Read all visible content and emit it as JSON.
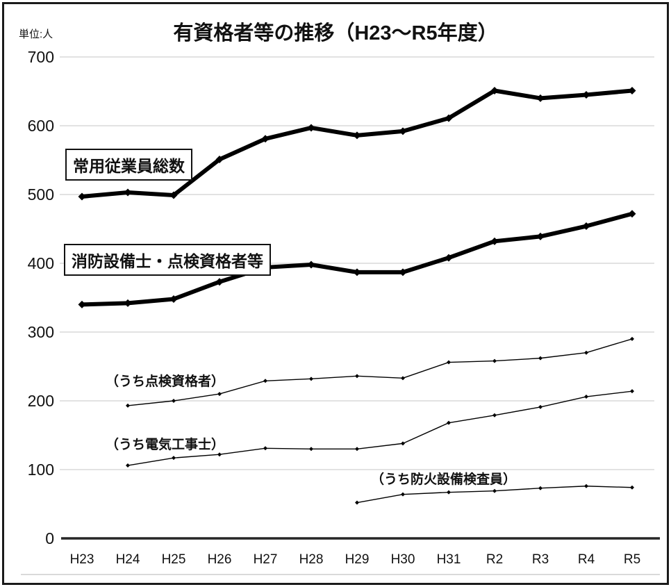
{
  "chart_data": {
    "type": "line",
    "title": "有資格者等の推移（H23～R5年度）",
    "unit_label": "単位:人",
    "categories": [
      "H23",
      "H24",
      "H25",
      "H26",
      "H27",
      "H28",
      "H29",
      "H30",
      "H31",
      "R2",
      "R3",
      "R4",
      "R5"
    ],
    "y_ticks": [
      0,
      100,
      200,
      300,
      400,
      500,
      600,
      700
    ],
    "ylim": [
      0,
      700
    ],
    "grid": "horizontal",
    "legend_position": "inline-labels",
    "colors": {
      "line": "#000000",
      "gridline": "#d9d9d9",
      "axis": "#262626",
      "background": "#ffffff",
      "border": "#1a1a1a"
    },
    "series": [
      {
        "name": "常用従業員総数",
        "style": "thick",
        "boxed_label": true,
        "values": [
          497,
          503,
          499,
          551,
          581,
          597,
          586,
          592,
          611,
          651,
          640,
          645,
          651
        ]
      },
      {
        "name": "消防設備士・点検資格者等",
        "style": "thick",
        "boxed_label": true,
        "values": [
          340,
          342,
          348,
          373,
          394,
          398,
          387,
          387,
          408,
          432,
          439,
          454,
          472
        ]
      },
      {
        "name": "（うち点検資格者）",
        "style": "thin",
        "boxed_label": false,
        "values": [
          null,
          193,
          200,
          210,
          229,
          232,
          236,
          233,
          256,
          258,
          262,
          270,
          290
        ]
      },
      {
        "name": "（うち電気工事士）",
        "style": "thin",
        "boxed_label": false,
        "values": [
          null,
          106,
          117,
          122,
          131,
          130,
          130,
          138,
          168,
          179,
          191,
          206,
          214
        ]
      },
      {
        "name": "（うち防火設備検査員）",
        "style": "thin",
        "boxed_label": false,
        "values": [
          null,
          null,
          null,
          null,
          null,
          null,
          52,
          64,
          67,
          69,
          73,
          76,
          74
        ]
      }
    ]
  }
}
